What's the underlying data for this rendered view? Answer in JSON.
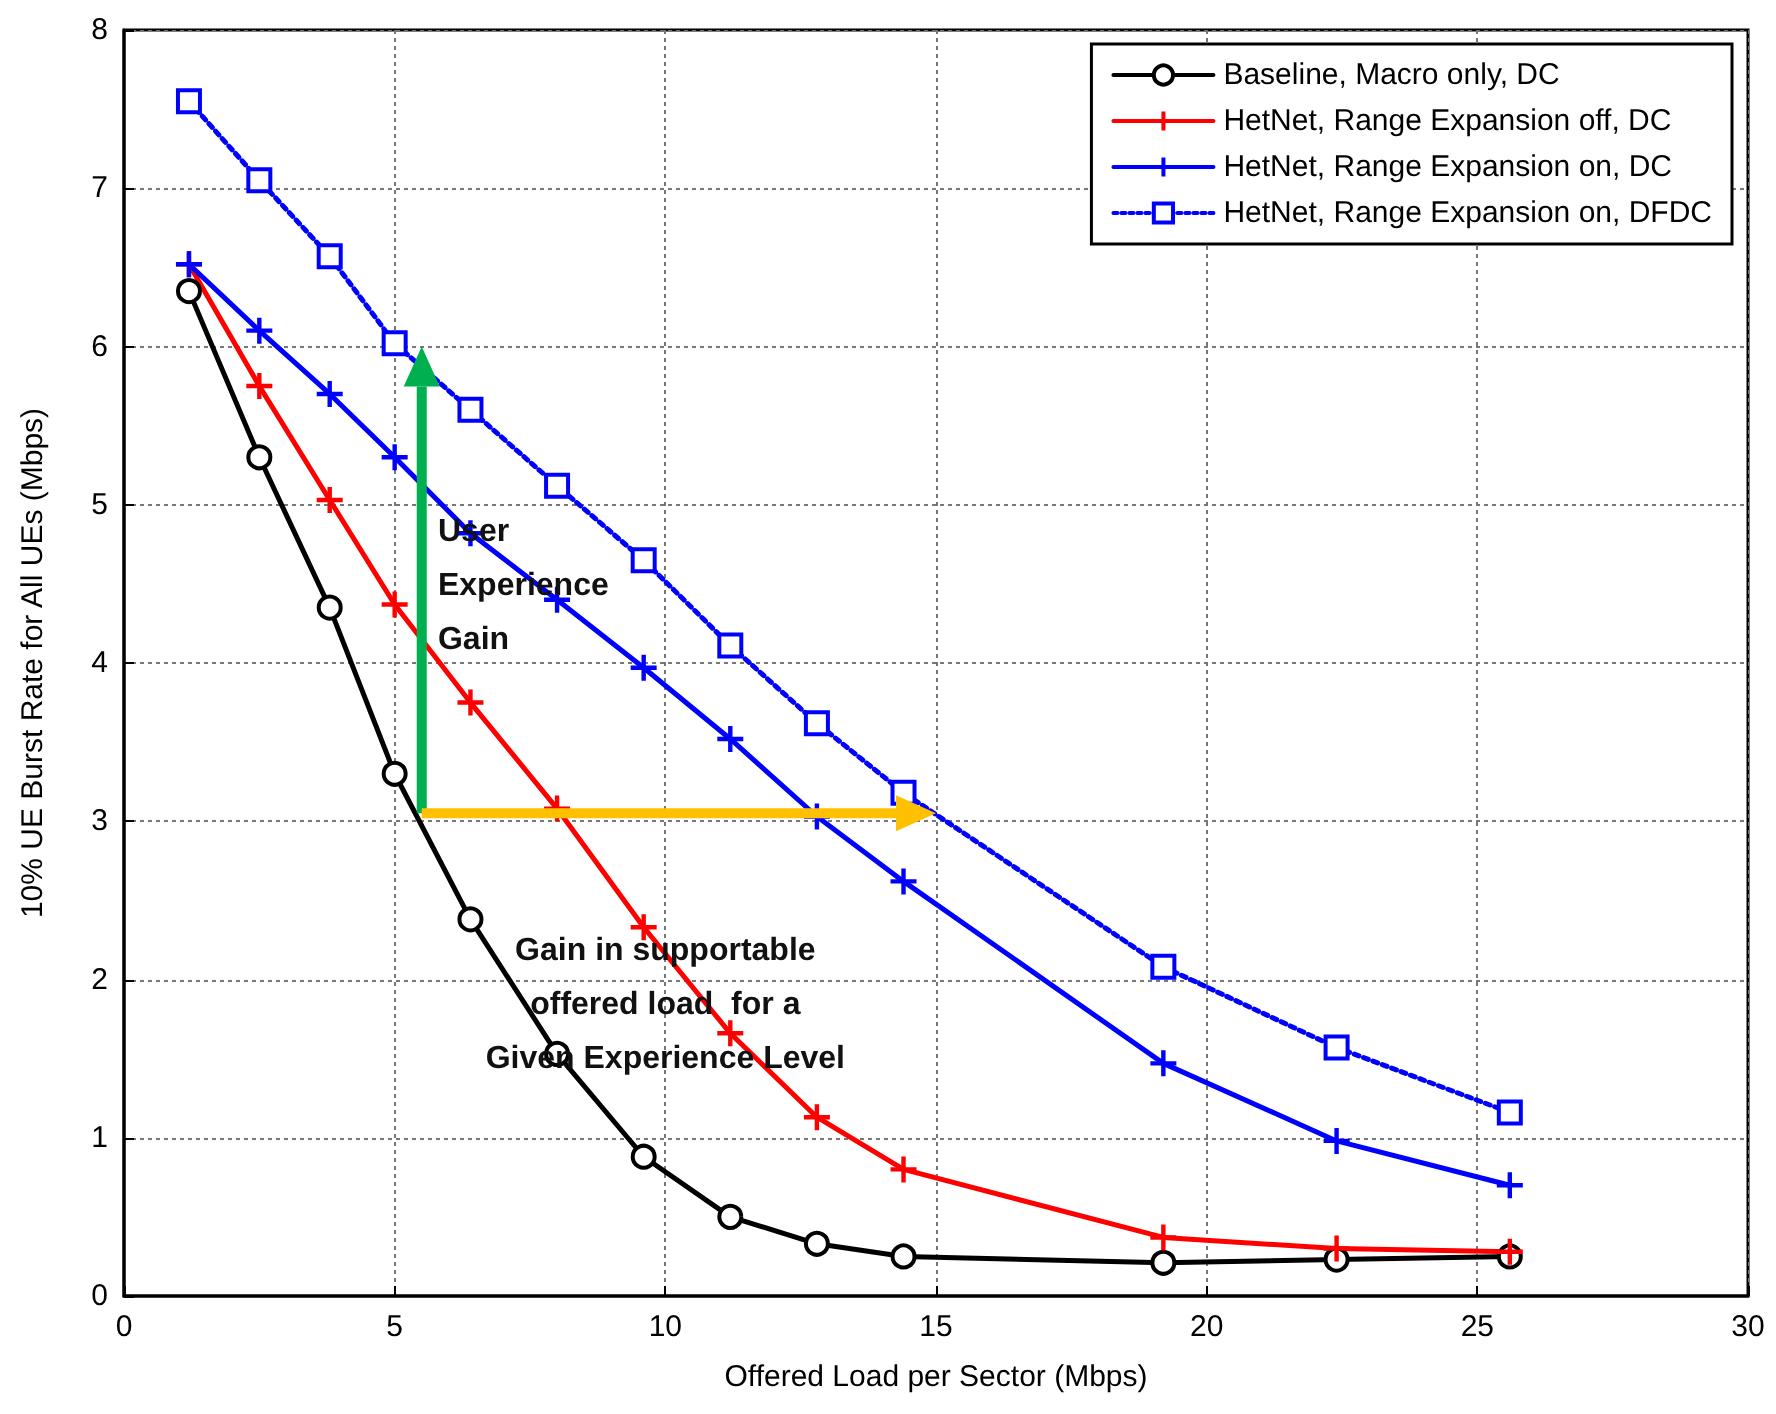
{
  "chart_data": {
    "type": "line",
    "xlabel": "Offered Load per Sector (Mbps)",
    "ylabel": "10% UE Burst Rate for All UEs (Mbps)",
    "x": [
      1.2,
      2.5,
      3.8,
      5.0,
      6.4,
      8.0,
      9.6,
      11.2,
      12.8,
      14.4,
      19.2,
      22.4,
      25.6
    ],
    "series": [
      {
        "name": "Baseline, Macro only, DC",
        "color": "#000000",
        "marker": "circle",
        "line_style": "solid",
        "values": [
          6.35,
          5.3,
          4.35,
          3.3,
          2.38,
          1.53,
          0.88,
          0.5,
          0.33,
          0.25,
          0.21,
          0.23,
          0.25
        ]
      },
      {
        "name": "HetNet, Range Expansion off, DC",
        "color": "#ff0000",
        "marker": "cross",
        "line_style": "solid",
        "values": [
          6.52,
          5.75,
          5.03,
          4.37,
          3.75,
          3.08,
          2.33,
          1.66,
          1.13,
          0.8,
          0.37,
          0.3,
          0.28
        ]
      },
      {
        "name": "HetNet, Range Expansion on, DC",
        "color": "#0000ff",
        "marker": "cross",
        "line_style": "solid",
        "values": [
          6.52,
          6.1,
          5.7,
          5.3,
          4.82,
          4.4,
          3.97,
          3.52,
          3.03,
          2.62,
          1.47,
          0.98,
          0.7
        ]
      },
      {
        "name": "HetNet, Range Expansion on, DFDC",
        "color": "#0000ff",
        "marker": "square",
        "line_style": "dotted",
        "values": [
          7.55,
          7.05,
          6.57,
          6.02,
          5.6,
          5.12,
          4.65,
          4.11,
          3.62,
          3.18,
          2.08,
          1.57,
          1.16
        ]
      }
    ],
    "xlim": [
      0,
      30
    ],
    "xticks": [
      0,
      5,
      10,
      15,
      20,
      25,
      30
    ],
    "ylim": [
      0,
      8
    ],
    "yticks": [
      0,
      1,
      2,
      3,
      4,
      5,
      6,
      7,
      8
    ],
    "grid": true,
    "legend": "top right",
    "annotations": [
      "User\nExperience\nGain",
      "Gain in supportable\noffered load  for a\nGiven Experience Level"
    ]
  }
}
